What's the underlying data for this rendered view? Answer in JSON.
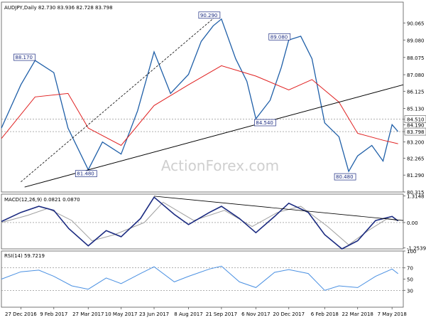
{
  "watermark": "ActionForex.com",
  "colors": {
    "price": "#1f5fa8",
    "ma": "#e02020",
    "macd": "#1a2a80",
    "signal": "#a0a0a0",
    "rsi": "#4a90e2",
    "trend": "#000000",
    "dotted": "#808080",
    "label_box": "#1a2a80"
  },
  "chart_data": [
    {
      "type": "line",
      "title": "AUDJPY,Daily  82.730 83.936 82.728 83.798",
      "ylim": [
        80.315,
        91.265
      ],
      "y_ticks": [
        "90.065",
        "89.080",
        "88.075",
        "87.080",
        "86.125",
        "85.130",
        "84.510",
        "84.190",
        "83.798",
        "83.200",
        "82.265",
        "81.290",
        "80.315"
      ],
      "y_tick_values": [
        90.065,
        89.08,
        88.075,
        87.08,
        86.125,
        85.13,
        84.51,
        84.19,
        83.798,
        83.2,
        82.265,
        81.29,
        80.315
      ],
      "highlighted_levels": [
        "84.510",
        "83.798"
      ],
      "x_ticks": [
        "27 Dec 2016",
        "9 Feb 2017",
        "27 Mar 2017",
        "10 May 2017",
        "23 Jun 2017",
        "8 Aug 2017",
        "21 Sep 2017",
        "6 Nov 2017",
        "20 Dec 2017",
        "6 Feb 2018",
        "22 Mar 2018",
        "7 May 2018"
      ],
      "series": [
        {
          "name": "AUDJPY",
          "x": [
            "2016-12-01",
            "2016-12-27",
            "2017-01-15",
            "2017-02-09",
            "2017-02-28",
            "2017-03-27",
            "2017-04-15",
            "2017-05-10",
            "2017-06-01",
            "2017-06-23",
            "2017-07-15",
            "2017-08-08",
            "2017-08-25",
            "2017-09-10",
            "2017-09-21",
            "2017-10-10",
            "2017-10-25",
            "2017-11-06",
            "2017-11-25",
            "2017-12-10",
            "2017-12-20",
            "2018-01-05",
            "2018-01-20",
            "2018-02-06",
            "2018-02-25",
            "2018-03-10",
            "2018-03-22",
            "2018-04-10",
            "2018-04-25",
            "2018-05-07",
            "2018-05-15"
          ],
          "values": [
            84.0,
            86.5,
            87.9,
            87.2,
            84.0,
            81.6,
            83.2,
            82.5,
            85.0,
            88.4,
            86.0,
            87.1,
            89.0,
            89.9,
            90.29,
            88.0,
            86.7,
            84.54,
            85.6,
            87.5,
            89.08,
            89.3,
            88.0,
            84.3,
            83.5,
            81.5,
            82.4,
            83.0,
            82.1,
            84.2,
            83.8
          ]
        },
        {
          "name": "MA",
          "x": [
            "2016-12-01",
            "2017-01-15",
            "2017-02-28",
            "2017-03-27",
            "2017-05-10",
            "2017-06-23",
            "2017-08-08",
            "2017-09-21",
            "2017-11-06",
            "2017-12-20",
            "2018-01-20",
            "2018-02-25",
            "2018-03-22",
            "2018-04-25",
            "2018-05-15"
          ],
          "values": [
            83.4,
            85.8,
            86.0,
            84.0,
            83.0,
            85.3,
            86.5,
            87.6,
            87.0,
            86.2,
            86.8,
            85.5,
            83.7,
            83.3,
            83.1
          ]
        }
      ],
      "annotations": [
        "90.290",
        "89.080",
        "88.170",
        "84.540",
        "81.480",
        "80.480"
      ]
    },
    {
      "type": "line",
      "title": "MACD(12,26,9) 0.0821 0.0870",
      "ylim": [
        -1.3,
        1.4
      ],
      "y_ticks": [
        "1.3148",
        "0.00",
        "-1.2539"
      ],
      "y_tick_values": [
        1.3148,
        0.0,
        -1.2539
      ],
      "series": [
        {
          "x": [
            "2016-12-01",
            "2016-12-27",
            "2017-01-20",
            "2017-02-09",
            "2017-03-01",
            "2017-03-27",
            "2017-04-20",
            "2017-05-10",
            "2017-06-05",
            "2017-06-23",
            "2017-07-20",
            "2017-08-08",
            "2017-09-05",
            "2017-09-21",
            "2017-10-15",
            "2017-11-06",
            "2017-12-01",
            "2017-12-20",
            "2018-01-15",
            "2018-02-06",
            "2018-03-01",
            "2018-03-22",
            "2018-04-15",
            "2018-05-07",
            "2018-05-15"
          ],
          "values": [
            0.05,
            0.5,
            0.8,
            0.6,
            -0.3,
            -1.15,
            -0.4,
            -0.7,
            0.2,
            1.25,
            0.4,
            -0.1,
            0.5,
            0.8,
            0.2,
            -0.5,
            0.3,
            0.95,
            0.5,
            -0.6,
            -1.3,
            -0.9,
            0.1,
            0.3,
            0.08
          ]
        },
        {
          "x": [
            "2016-12-01",
            "2017-01-05",
            "2017-02-01",
            "2017-03-05",
            "2017-04-01",
            "2017-05-01",
            "2017-06-10",
            "2017-07-05",
            "2017-08-15",
            "2017-09-25",
            "2017-11-01",
            "2017-12-05",
            "2018-01-05",
            "2018-02-10",
            "2018-03-10",
            "2018-04-05",
            "2018-05-01",
            "2018-05-15"
          ],
          "values": [
            0.0,
            0.35,
            0.7,
            0.1,
            -0.9,
            -0.6,
            0.0,
            1.0,
            0.1,
            0.6,
            -0.2,
            0.5,
            0.8,
            -0.2,
            -1.1,
            -0.4,
            0.2,
            0.09
          ]
        }
      ]
    },
    {
      "type": "line",
      "title": "RSI(14) 59.7219",
      "ylim": [
        0,
        100
      ],
      "y_ticks": [
        "100",
        "70",
        "50",
        "30",
        "0"
      ],
      "y_tick_values": [
        100,
        70,
        50,
        30,
        0
      ],
      "series": [
        {
          "x": [
            "2016-12-01",
            "2016-12-27",
            "2017-01-20",
            "2017-02-09",
            "2017-03-05",
            "2017-03-27",
            "2017-04-20",
            "2017-05-10",
            "2017-06-05",
            "2017-06-23",
            "2017-07-20",
            "2017-08-08",
            "2017-09-05",
            "2017-09-21",
            "2017-10-15",
            "2017-11-06",
            "2017-12-01",
            "2017-12-20",
            "2018-01-15",
            "2018-02-06",
            "2018-02-25",
            "2018-03-22",
            "2018-04-15",
            "2018-05-07",
            "2018-05-15"
          ],
          "values": [
            50,
            63,
            66,
            55,
            38,
            32,
            52,
            42,
            60,
            72,
            45,
            55,
            68,
            73,
            45,
            35,
            62,
            67,
            60,
            30,
            38,
            35,
            55,
            68,
            59.7
          ]
        }
      ]
    }
  ]
}
